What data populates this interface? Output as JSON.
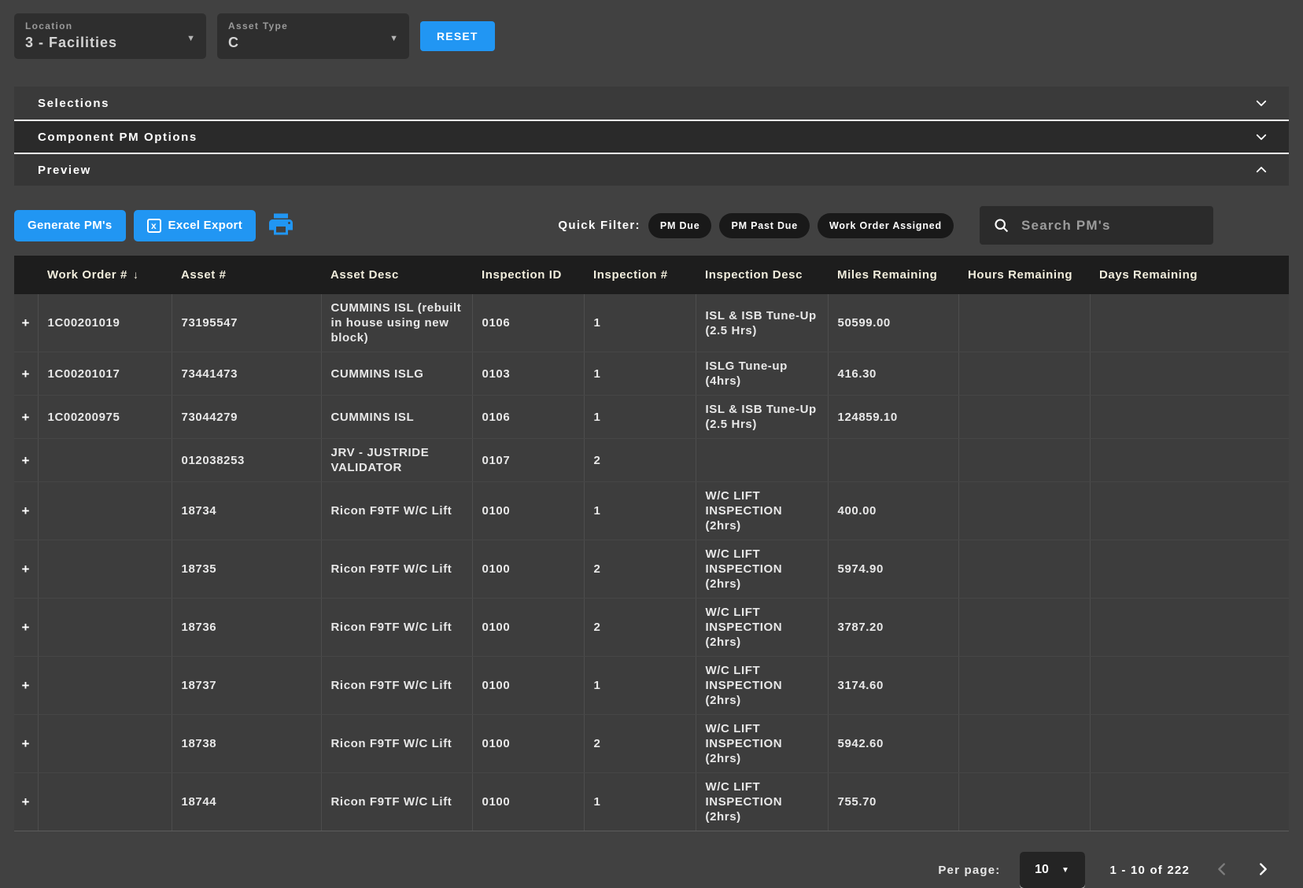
{
  "filters": {
    "location": {
      "label": "Location",
      "value": "3 - Facilities"
    },
    "asset_type": {
      "label": "Asset Type",
      "value": "C"
    },
    "reset_label": "RESET"
  },
  "accordion": {
    "sections": [
      {
        "label": "Selections",
        "state": "collapsed"
      },
      {
        "label": "Component PM Options",
        "state": "collapsed"
      },
      {
        "label": "Preview",
        "state": "expanded"
      }
    ]
  },
  "toolbar": {
    "generate_label": "Generate PM's",
    "excel_label": "Excel Export",
    "excel_icon_letter": "x",
    "quick_filter_label": "Quick Filter:",
    "chips": [
      "PM Due",
      "PM Past Due",
      "Work Order Assigned"
    ],
    "search_placeholder": "Search PM's"
  },
  "table": {
    "columns": [
      "",
      "Work Order #",
      "Asset #",
      "Asset Desc",
      "Inspection ID",
      "Inspection #",
      "Inspection Desc",
      "Miles Remaining",
      "Hours Remaining",
      "Days Remaining"
    ],
    "sorted_column": "Work Order #",
    "sort_indicator": "↓",
    "expand_glyph": "+",
    "rows": [
      {
        "work_order": "1C00201019",
        "asset": "73195547",
        "asset_desc": "CUMMINS ISL (rebuilt in house using new block)",
        "inspection_id": "0106",
        "inspection_num": "1",
        "inspection_desc": "ISL & ISB Tune-Up (2.5 Hrs)",
        "miles": "50599.00",
        "hours": "",
        "days": ""
      },
      {
        "work_order": "1C00201017",
        "asset": "73441473",
        "asset_desc": "CUMMINS ISLG",
        "inspection_id": "0103",
        "inspection_num": "1",
        "inspection_desc": "ISLG Tune-up (4hrs)",
        "miles": "416.30",
        "hours": "",
        "days": ""
      },
      {
        "work_order": "1C00200975",
        "asset": "73044279",
        "asset_desc": "CUMMINS ISL",
        "inspection_id": "0106",
        "inspection_num": "1",
        "inspection_desc": "ISL & ISB Tune-Up (2.5 Hrs)",
        "miles": "124859.10",
        "hours": "",
        "days": ""
      },
      {
        "work_order": "",
        "asset": "012038253",
        "asset_desc": "JRV - JUSTRIDE VALIDATOR",
        "inspection_id": "0107",
        "inspection_num": "2",
        "inspection_desc": "",
        "miles": "",
        "hours": "",
        "days": ""
      },
      {
        "work_order": "",
        "asset": "18734",
        "asset_desc": "Ricon F9TF W/C Lift",
        "inspection_id": "0100",
        "inspection_num": "1",
        "inspection_desc": "W/C LIFT INSPECTION (2hrs)",
        "miles": "400.00",
        "hours": "",
        "days": ""
      },
      {
        "work_order": "",
        "asset": "18735",
        "asset_desc": "Ricon F9TF W/C Lift",
        "inspection_id": "0100",
        "inspection_num": "2",
        "inspection_desc": "W/C LIFT INSPECTION (2hrs)",
        "miles": "5974.90",
        "hours": "",
        "days": ""
      },
      {
        "work_order": "",
        "asset": "18736",
        "asset_desc": "Ricon F9TF W/C Lift",
        "inspection_id": "0100",
        "inspection_num": "2",
        "inspection_desc": "W/C LIFT INSPECTION (2hrs)",
        "miles": "3787.20",
        "hours": "",
        "days": ""
      },
      {
        "work_order": "",
        "asset": "18737",
        "asset_desc": "Ricon F9TF W/C Lift",
        "inspection_id": "0100",
        "inspection_num": "1",
        "inspection_desc": "W/C LIFT INSPECTION (2hrs)",
        "miles": "3174.60",
        "hours": "",
        "days": ""
      },
      {
        "work_order": "",
        "asset": "18738",
        "asset_desc": "Ricon F9TF W/C Lift",
        "inspection_id": "0100",
        "inspection_num": "2",
        "inspection_desc": "W/C LIFT INSPECTION (2hrs)",
        "miles": "5942.60",
        "hours": "",
        "days": ""
      },
      {
        "work_order": "",
        "asset": "18744",
        "asset_desc": "Ricon F9TF W/C Lift",
        "inspection_id": "0100",
        "inspection_num": "1",
        "inspection_desc": "W/C LIFT INSPECTION (2hrs)",
        "miles": "755.70",
        "hours": "",
        "days": ""
      }
    ]
  },
  "pagination": {
    "per_page_label": "Per page:",
    "per_page_value": "10",
    "range_text": "1 - 10 of 222"
  },
  "colors": {
    "accent": "#2196F3",
    "header_text": "#f2eedd",
    "chip_bg": "#191919"
  }
}
